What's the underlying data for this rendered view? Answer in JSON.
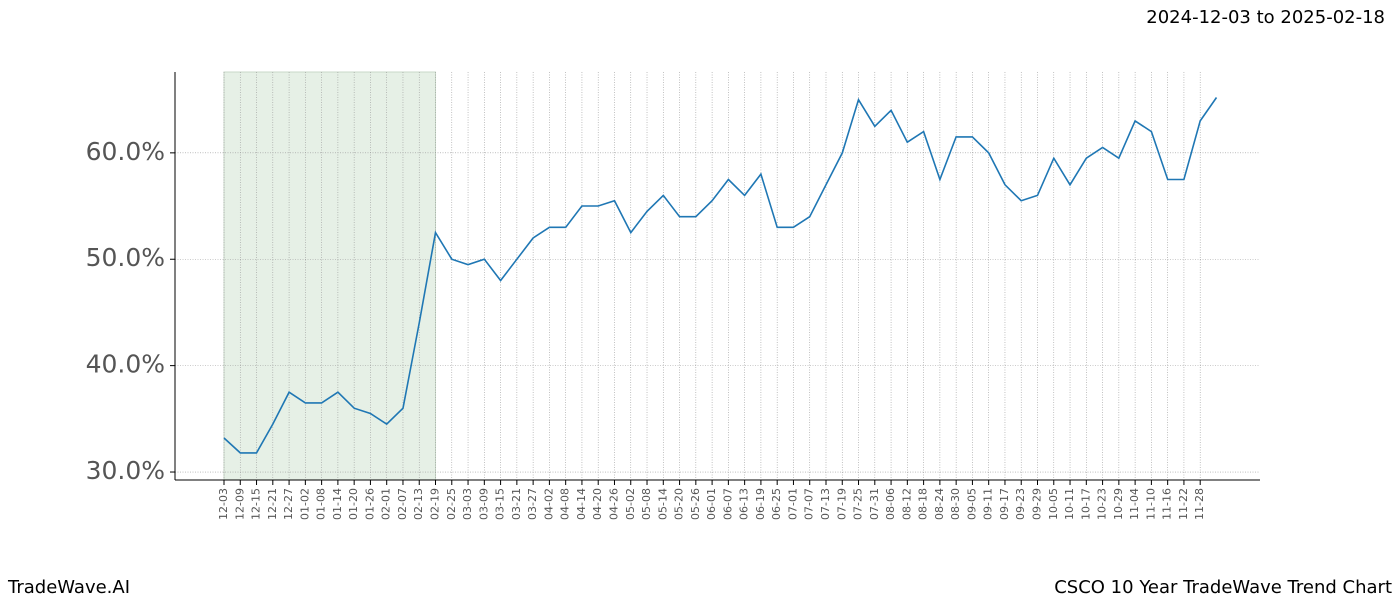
{
  "chart_data": {
    "type": "line",
    "date_range": "2024-12-03 to 2025-02-18",
    "brand": "TradeWave.AI",
    "title": "CSCO 10 Year TradeWave Trend Chart",
    "categories": [
      "12-03",
      "12-09",
      "12-15",
      "12-21",
      "12-27",
      "01-02",
      "01-08",
      "01-14",
      "01-20",
      "01-26",
      "02-01",
      "02-07",
      "02-13",
      "02-19",
      "02-25",
      "03-03",
      "03-09",
      "03-15",
      "03-21",
      "03-27",
      "04-02",
      "04-08",
      "04-14",
      "04-20",
      "04-26",
      "05-02",
      "05-08",
      "05-14",
      "05-20",
      "05-26",
      "06-01",
      "06-07",
      "06-13",
      "06-19",
      "06-25",
      "07-01",
      "07-07",
      "07-13",
      "07-19",
      "07-25",
      "07-31",
      "08-06",
      "08-12",
      "08-18",
      "08-24",
      "08-30",
      "09-05",
      "09-11",
      "09-17",
      "09-23",
      "09-29",
      "10-05",
      "10-11",
      "10-17",
      "10-23",
      "10-29",
      "11-04",
      "11-10",
      "11-16",
      "11-22",
      "11-28",
      null
    ],
    "series": [
      {
        "color": "#1f77b4",
        "values": [
          33.2,
          31.8,
          31.8,
          34.5,
          37.5,
          36.5,
          36.5,
          37.5,
          36,
          35.5,
          34.5,
          36,
          44,
          52.5,
          50,
          49.5,
          50,
          48,
          50,
          52,
          53,
          53,
          55,
          55,
          55.5,
          52.5,
          54.5,
          56,
          54,
          54,
          55.5,
          57.5,
          56,
          58,
          53,
          53,
          54,
          57,
          60,
          65,
          62.5,
          64,
          61,
          62,
          57.5,
          61.5,
          61.5,
          60,
          57,
          55.5,
          56,
          59.5,
          57,
          59.5,
          60.5,
          59.5,
          63,
          62,
          57.5,
          57.5,
          63,
          65.2
        ]
      }
    ],
    "shaded_from": "12-03",
    "shaded_to": "02-19",
    "shade_color": "#e6f0e6",
    "ylim": [
      29.25,
      67.6
    ],
    "yticks": [
      {
        "value": 30,
        "label": "30.0%"
      },
      {
        "value": 40,
        "label": "40.0%"
      },
      {
        "value": 50,
        "label": "50.0%"
      },
      {
        "value": 60,
        "label": "60.0%"
      }
    ],
    "grid": true
  }
}
